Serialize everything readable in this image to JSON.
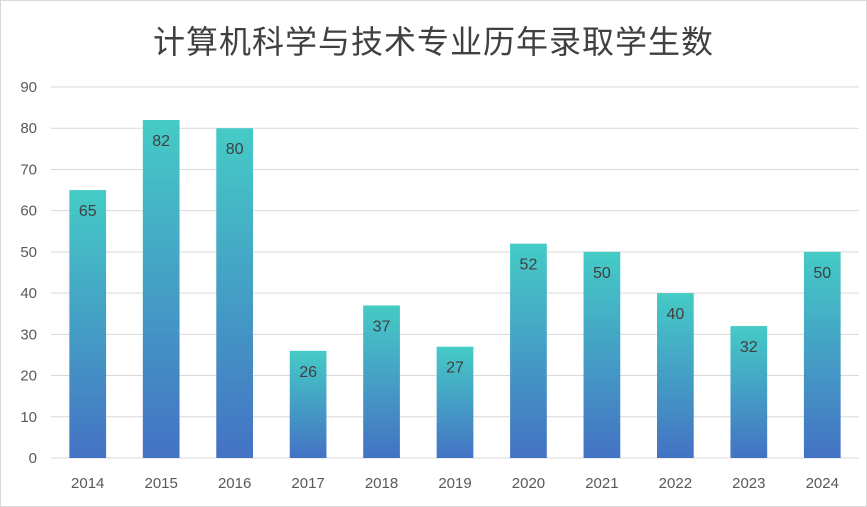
{
  "chart_data": {
    "type": "bar",
    "title": "计算机科学与技术专业历年录取学生数",
    "xlabel": "",
    "ylabel": "",
    "categories": [
      "2014",
      "2015",
      "2016",
      "2017",
      "2018",
      "2019",
      "2020",
      "2021",
      "2022",
      "2023",
      "2024"
    ],
    "values": [
      65,
      82,
      80,
      26,
      37,
      27,
      52,
      50,
      40,
      32,
      50
    ],
    "ylim": [
      0,
      90
    ],
    "yticks": [
      0,
      10,
      20,
      30,
      40,
      50,
      60,
      70,
      80,
      90
    ],
    "grid": true,
    "legend": "none",
    "data_labels": true,
    "colors": {
      "bar_gradient_top": "#45CBC6",
      "bar_gradient_bottom": "#4472C4",
      "gridline": "#d9d9d9",
      "axis_text": "#595959",
      "title_text": "#404040"
    }
  }
}
